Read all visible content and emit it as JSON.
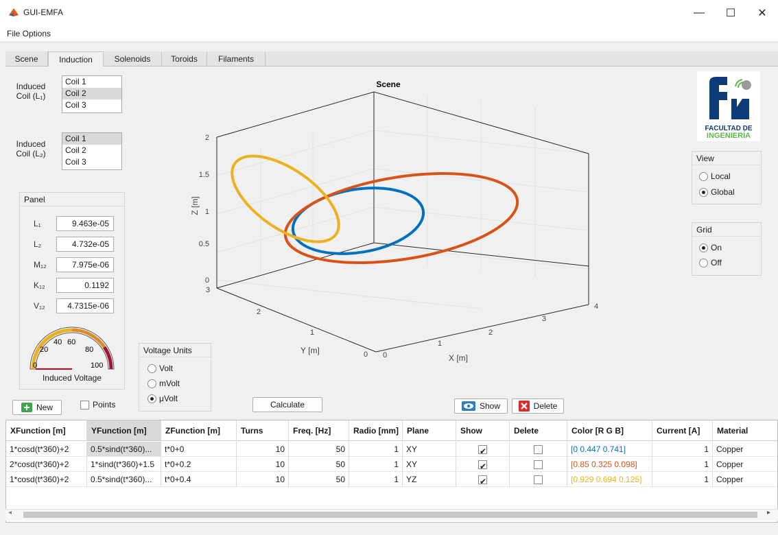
{
  "window": {
    "title": "GUI-EMFA",
    "minimize": "—",
    "maximize": "☐",
    "close": "✕"
  },
  "menu": {
    "label": "File  Options"
  },
  "tabs": [
    "Scene",
    "Induction",
    "Solenoids",
    "Toroids",
    "Filaments"
  ],
  "induced1": {
    "label_a": "Induced",
    "label_b": "Coil (L₁)",
    "items": [
      "Coil 1",
      "Coil 2",
      "Coil 3"
    ],
    "selected": "Coil 2"
  },
  "induced2": {
    "label_a": "Induced",
    "label_b": "Coil (L₂)",
    "items": [
      "Coil 1",
      "Coil 2",
      "Coil 3"
    ],
    "selected": "Coil 1"
  },
  "panel": {
    "title": "Panel",
    "fields": [
      {
        "label": "L₁",
        "value": "9.463e-05"
      },
      {
        "label": "L₂",
        "value": "4.732e-05"
      },
      {
        "label": "M₁₂",
        "value": "7.975e-06"
      },
      {
        "label": "K₁₂",
        "value": "0.1192"
      },
      {
        "label": "V₁₂",
        "value": "4.7315e-06"
      }
    ],
    "gauge": {
      "ticks": [
        "0",
        "20",
        "40",
        "60",
        "80",
        "100"
      ],
      "label": "Induced Voltage",
      "value": 0
    }
  },
  "voltage_units": {
    "title": "Voltage Units",
    "options": [
      "Volt",
      "mVolt",
      "μVolt"
    ],
    "selected": "μVolt"
  },
  "plot": {
    "title": "Scene",
    "zlabel": "Z [m]",
    "ylabel": "Y [m]",
    "xlabel": "X [m]",
    "zticks": [
      "0",
      "0.5",
      "1",
      "1.5",
      "2"
    ],
    "yticks": [
      "0",
      "1",
      "2",
      "3"
    ],
    "xticks": [
      "0",
      "1",
      "2",
      "3",
      "4"
    ],
    "coil_colors": [
      "#0072bd",
      "#d95319",
      "#edb120"
    ]
  },
  "logo": {
    "line1": "FACULTAD DE",
    "line2": "INGENIERÍA"
  },
  "view": {
    "title": "View",
    "options": [
      "Local",
      "Global"
    ],
    "selected": "Global"
  },
  "grid": {
    "title": "Grid",
    "options": [
      "On",
      "Off"
    ],
    "selected": "On"
  },
  "buttons": {
    "new": "New",
    "points": "Points",
    "calculate": "Calculate",
    "show": "Show",
    "delete": "Delete"
  },
  "table": {
    "headers": [
      "XFunction [m]",
      "YFunction [m]",
      "ZFunction [m]",
      "Turns",
      "Freq. [Hz]",
      "Radio [mm]",
      "Plane",
      "Show",
      "Delete",
      "Color [R G B]",
      "Current [A]",
      "Material"
    ],
    "rows": [
      {
        "x": "1*cosd(t*360)+2",
        "y": "0.5*sind(t*360)...",
        "z": "t*0+0",
        "turns": "10",
        "freq": "50",
        "radio": "1",
        "plane": "XY",
        "show": true,
        "del": false,
        "color": "[0 0.447 0.741]",
        "color_hex": "#0072bd",
        "current": "1",
        "material": "Copper"
      },
      {
        "x": "2*cosd(t*360)+2",
        "y": "1*sind(t*360)+1.5",
        "z": "t*0+0.2",
        "turns": "10",
        "freq": "50",
        "radio": "1",
        "plane": "XY",
        "show": true,
        "del": false,
        "color": "[0.85 0.325 0.098]",
        "color_hex": "#d95319",
        "current": "1",
        "material": "Copper"
      },
      {
        "x": "1*cosd(t*360)+2",
        "y": "0.5*sind(t*360)...",
        "z": "t*0+0.4",
        "turns": "10",
        "freq": "50",
        "radio": "1",
        "plane": "YZ",
        "show": true,
        "del": false,
        "color": "[0.929 0.694 0.125]",
        "color_hex": "#edb120",
        "current": "1",
        "material": "Copper"
      }
    ]
  }
}
